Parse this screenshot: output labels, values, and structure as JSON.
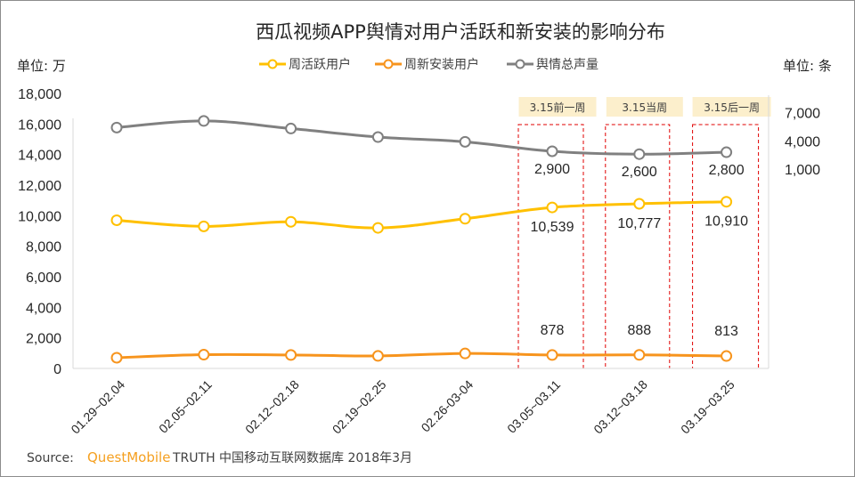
{
  "chart_data": {
    "type": "line",
    "title": "西瓜视频APP舆情对用户活跃和新安装的影响分布",
    "left_axis": {
      "unit_label": "单位: 万",
      "range": [
        0,
        18000
      ],
      "ticks": [
        "0",
        "2,000",
        "4,000",
        "6,000",
        "8,000",
        "10,000",
        "12,000",
        "14,000",
        "16,000",
        "18,000"
      ],
      "tick_values": [
        0,
        2000,
        4000,
        6000,
        8000,
        10000,
        12000,
        14000,
        16000,
        18000
      ]
    },
    "right_axis": {
      "unit_label": "单位: 条",
      "range": [
        -20000,
        9000
      ],
      "ticks": [
        "1,000",
        "4,000",
        "7,000"
      ],
      "tick_values": [
        1000,
        4000,
        7000
      ]
    },
    "categories": [
      "01.29~02.04",
      "02.05~02.11",
      "02.12~02.18",
      "02.19~02.25",
      "02.26-03-04",
      "03.05~03.11",
      "03.12~03.18",
      "03.19~03.25"
    ],
    "series": [
      {
        "name": "周活跃用户",
        "axis": "left",
        "color": "#FFC000",
        "values": [
          9700,
          9300,
          9600,
          9200,
          9800,
          10539,
          10777,
          10910
        ],
        "labels": [
          "",
          "",
          "",
          "",
          "",
          "10,539",
          "10,777",
          "10,910"
        ]
      },
      {
        "name": "周新安装用户",
        "axis": "left",
        "color": "#F7941D",
        "values": [
          700,
          900,
          880,
          820,
          980,
          878,
          888,
          813
        ],
        "labels": [
          "",
          "",
          "",
          "",
          "",
          "878",
          "888",
          "813"
        ]
      },
      {
        "name": "舆情总声量",
        "axis": "right",
        "color": "#808080",
        "values": [
          5400,
          6100,
          5300,
          4400,
          3900,
          2900,
          2600,
          2800
        ],
        "labels": [
          "",
          "",
          "",
          "",
          "",
          "2,900",
          "2,600",
          "2,800"
        ]
      }
    ],
    "highlights": [
      {
        "category_index": 5,
        "label": "3.15前一周"
      },
      {
        "category_index": 6,
        "label": "3.15当周"
      },
      {
        "category_index": 7,
        "label": "3.15后一周"
      }
    ],
    "highlight_fill": "#FCEFCC",
    "highlight_border": "#E00000",
    "legend_placement": "top-center",
    "grid": false
  },
  "source": {
    "prefix": "Source:",
    "brand": "QuestMobile",
    "rest": "TRUTH 中国移动互联网数据库 2018年3月"
  }
}
